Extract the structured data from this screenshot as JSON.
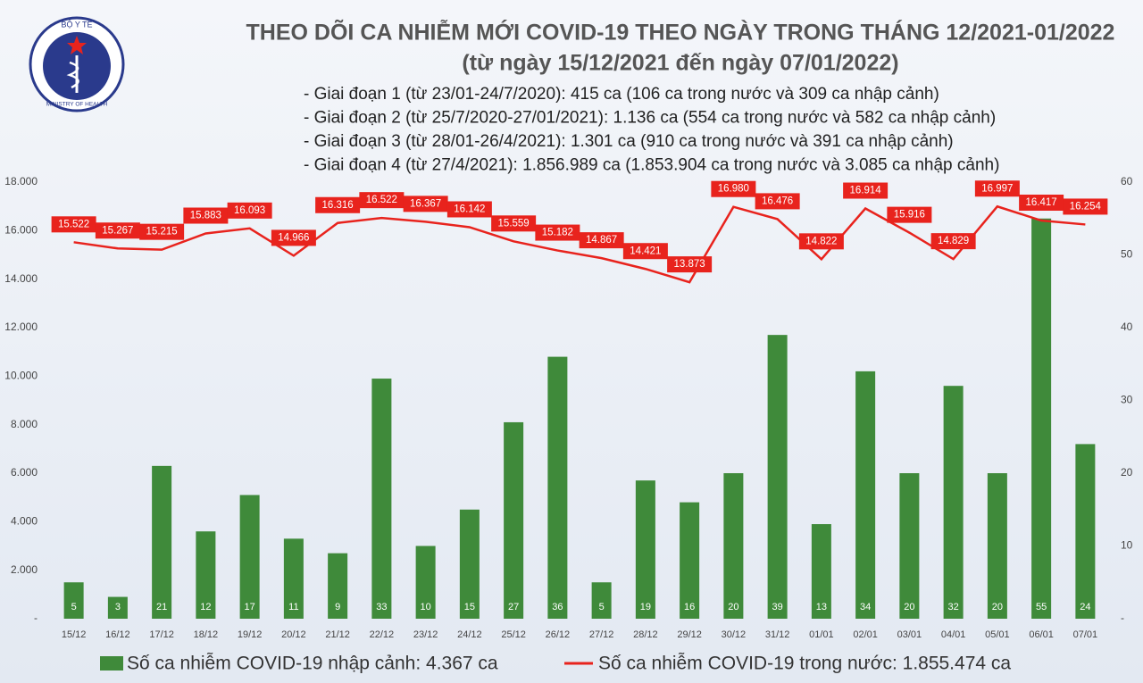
{
  "logo": {
    "top": "BỘ Y TẾ",
    "bottom": "MINISTRY OF HEALTH"
  },
  "chart_data": {
    "type": "combo",
    "title": "THEO DÕI CA NHIỄM MỚI COVID-19 THEO NGÀY TRONG THÁNG 12/2021-01/2022",
    "subtitle": "(từ ngày 15/12/2021 đến ngày 07/01/2022)",
    "annotations": [
      "- Giai đoạn 1 (từ 23/01-24/7/2020): 415 ca (106 ca trong nước và 309 ca nhập cảnh)",
      "- Giai đoạn 2 (từ 25/7/2020-27/01/2021): 1.136 ca (554 ca trong nước và 582 ca nhập cảnh)",
      "- Giai đoạn 3 (từ 28/01-26/4/2021): 1.301 ca (910 ca trong nước và 391 ca nhập cảnh)",
      "- Giai đoạn 4 (từ 27/4/2021): 1.856.989 ca (1.853.904 ca trong nước và 3.085 ca nhập cảnh)"
    ],
    "categories": [
      "15/12",
      "16/12",
      "17/12",
      "18/12",
      "19/12",
      "20/12",
      "21/12",
      "22/12",
      "23/12",
      "24/12",
      "25/12",
      "26/12",
      "27/12",
      "28/12",
      "29/12",
      "30/12",
      "31/12",
      "01/01",
      "02/01",
      "03/01",
      "04/01",
      "05/01",
      "06/01",
      "07/01"
    ],
    "series": [
      {
        "name": "Số ca nhiễm COVID-19 nhập cảnh: 4.367 ca",
        "type": "bar",
        "axis": "y2",
        "color": "#3f8a3a",
        "values": [
          5,
          3,
          21,
          12,
          17,
          11,
          9,
          33,
          10,
          15,
          27,
          36,
          5,
          19,
          16,
          20,
          39,
          13,
          34,
          20,
          32,
          20,
          55,
          24
        ]
      },
      {
        "name": "Số ca nhiễm COVID-19 trong nước: 1.855.474 ca",
        "type": "line",
        "color": "#e8231d",
        "values": [
          15522,
          15267,
          15215,
          15883,
          16093,
          14966,
          16316,
          16522,
          16367,
          16142,
          15559,
          15182,
          14867,
          14421,
          13873,
          16980,
          16476,
          14822,
          16914,
          15916,
          14829,
          16997,
          16417,
          16254
        ],
        "value_labels": [
          "15.522",
          "15.267",
          "15.215",
          "15.883",
          "16.093",
          "14.966",
          "16.316",
          "16.522",
          "16.367",
          "16.142",
          "15.559",
          "15.182",
          "14.867",
          "14.421",
          "13.873",
          "16.980",
          "16.476",
          "14.822",
          "16.914",
          "15.916",
          "14.829",
          "16.997",
          "16.417",
          "16.254"
        ]
      }
    ],
    "ylim": [
      0,
      18000
    ],
    "yticks": [
      {
        "value": 0,
        "label": "-"
      },
      {
        "value": 2000,
        "label": "2.000"
      },
      {
        "value": 4000,
        "label": "4.000"
      },
      {
        "value": 6000,
        "label": "6.000"
      },
      {
        "value": 8000,
        "label": "8.000"
      },
      {
        "value": 10000,
        "label": "10.000"
      },
      {
        "value": 12000,
        "label": "12.000"
      },
      {
        "value": 14000,
        "label": "14.000"
      },
      {
        "value": 16000,
        "label": "16.000"
      },
      {
        "value": 18000,
        "label": "18.000"
      }
    ],
    "y2lim": [
      0,
      60
    ],
    "y2ticks": [
      {
        "value": 0,
        "label": "-"
      },
      10,
      20,
      30,
      40,
      50,
      60
    ]
  }
}
